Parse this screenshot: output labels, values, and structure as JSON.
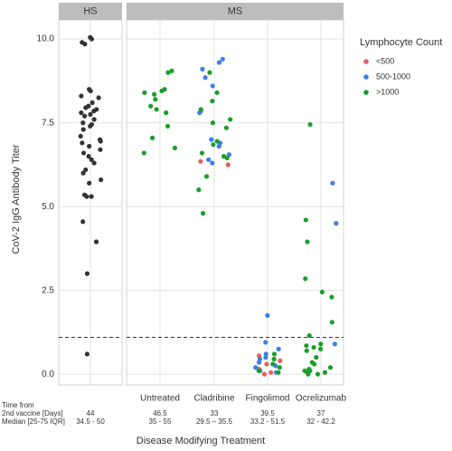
{
  "chart_data": {
    "type": "strip",
    "facets": [
      "HS",
      "MS"
    ],
    "categories": [
      null,
      "Untreated",
      "Cladribine",
      "Fingolimod",
      "Ocrelizumab"
    ],
    "y_label": "CoV-2 IgG Antibody Titer",
    "x_label": "Disease Modifying Treatment",
    "legend_title": "Lymphocyte Count",
    "legend": "right",
    "grid": true,
    "ylim": [
      -0.32,
      10.57
    ],
    "yticks": [
      {
        "value": 0,
        "label": "0.0"
      },
      2.5,
      {
        "value": 5,
        "label": "5.0"
      },
      7.5,
      {
        "value": 10,
        "label": "10.0"
      }
    ],
    "hline": 1.1,
    "series": [
      {
        "color": "#333333",
        "values": [
          [
            10.05,
            10.0,
            9.9,
            9.85,
            8.5,
            8.45,
            8.3,
            8.25,
            8.1,
            8.0,
            7.95,
            7.9,
            7.85,
            7.8,
            7.75,
            7.7,
            7.6,
            7.5,
            7.45,
            7.4,
            7.3,
            7.1,
            7.0,
            6.95,
            6.9,
            6.8,
            6.7,
            6.6,
            6.5,
            6.4,
            6.3,
            6.1,
            6.0,
            5.8,
            5.7,
            5.35,
            5.3,
            5.3,
            4.55,
            3.95,
            3.0,
            0.6
          ],
          [],
          [],
          [],
          []
        ]
      },
      {
        "name": "<500",
        "color": "#e0605e",
        "values": [
          [],
          [],
          [
            6.35,
            6.25
          ],
          [
            0.55,
            0.4,
            0.3,
            0.15,
            0.05,
            0.0
          ],
          []
        ]
      },
      {
        "name": "500-1000",
        "color": "#3f7fe6",
        "values": [
          [],
          [],
          [
            9.4,
            9.3,
            9.1,
            8.85,
            8.6,
            7.85,
            7.8,
            7.0,
            6.9,
            6.8,
            6.55,
            6.4,
            6.3
          ],
          [
            1.75,
            0.95,
            0.75,
            0.6,
            0.5,
            0.45,
            0.35,
            0.25,
            0.2,
            0.1,
            0.05
          ],
          [
            5.7,
            4.5,
            0.9
          ]
        ]
      },
      {
        "name": ">1000",
        "color": "#1a9e2a",
        "values": [
          [],
          [
            9.05,
            9.0,
            8.5,
            8.45,
            8.4,
            8.35,
            8.2,
            8.0,
            7.9,
            7.8,
            7.4,
            7.05,
            6.75,
            6.6
          ],
          [
            9.0,
            8.4,
            8.15,
            7.9,
            7.6,
            7.5,
            7.35,
            6.95,
            6.85,
            6.6,
            6.5,
            6.45,
            5.9,
            5.5,
            4.8
          ],
          [
            0.6,
            0.45,
            0.3,
            0.2,
            0.1,
            0.05
          ],
          [
            7.45,
            4.6,
            3.95,
            2.85,
            2.45,
            2.3,
            1.55,
            1.15,
            0.9,
            0.85,
            0.8,
            0.75,
            0.7,
            0.5,
            0.35,
            0.3,
            0.2,
            0.15,
            0.1,
            0.1,
            0.05,
            0.05,
            0.0,
            0.0
          ]
        ]
      }
    ],
    "table": {
      "row_labels": [
        "Time from",
        "2nd vaccine [Days]",
        "Median [25-75 IQR]"
      ],
      "medians": [
        "44",
        "46.5",
        "33",
        "39.5",
        "37"
      ],
      "iqr": [
        "34.5 - 50",
        "35 - 55",
        "29.5 – 35.5",
        "33.2 - 51.5",
        "32 - 42.2"
      ]
    }
  }
}
